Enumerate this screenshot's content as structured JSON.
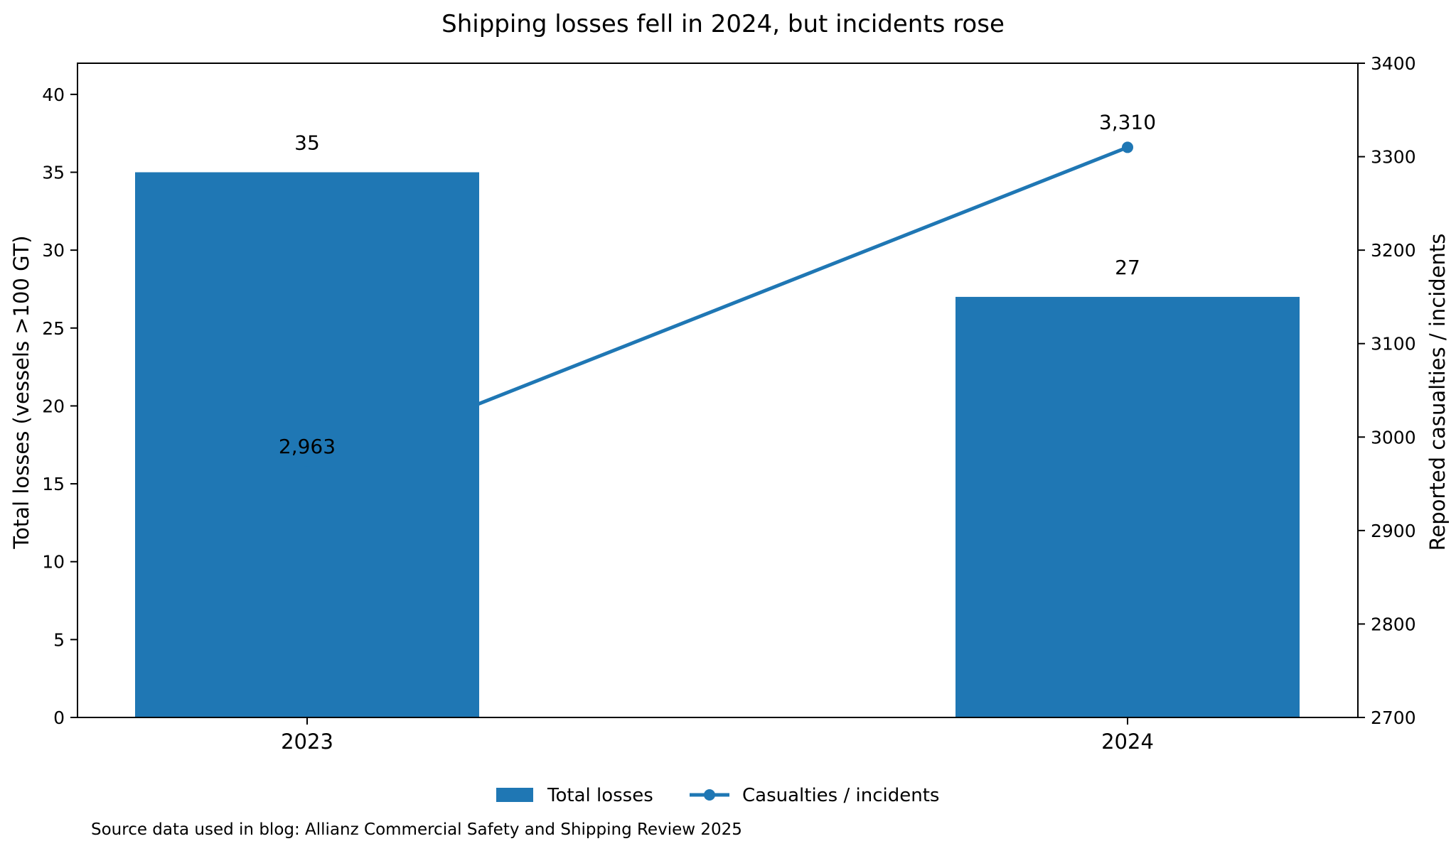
{
  "chart_data": {
    "type": "bar",
    "title": "Shipping losses fell in 2024, but incidents rose",
    "categories": [
      "2023",
      "2024"
    ],
    "series": [
      {
        "name": "Total losses",
        "type": "bar",
        "axis": "left",
        "values": [
          35,
          27
        ],
        "labels": [
          "35",
          "27"
        ],
        "color": "#1f77b4"
      },
      {
        "name": "Casualties / incidents",
        "type": "line",
        "axis": "right",
        "values": [
          2963,
          3310
        ],
        "labels": [
          "2,963",
          "3,310"
        ],
        "color": "#1f77b4",
        "marker": "circle"
      }
    ],
    "ylabel": "Total losses (vessels >100 GT)",
    "y2label": "Reported casualties / incidents",
    "xlabel": "",
    "ylim": [
      0,
      42
    ],
    "y2lim": [
      2700,
      3400
    ],
    "yticks": [
      "0",
      "5",
      "10",
      "15",
      "20",
      "25",
      "30",
      "35",
      "40"
    ],
    "y2ticks": [
      "2700",
      "2800",
      "2900",
      "3000",
      "3100",
      "3200",
      "3300",
      "3400"
    ],
    "grid": false,
    "legend_position": "bottom-center",
    "source_note": "Source data used in blog: Allianz Commercial Safety and Shipping Review 2025"
  }
}
